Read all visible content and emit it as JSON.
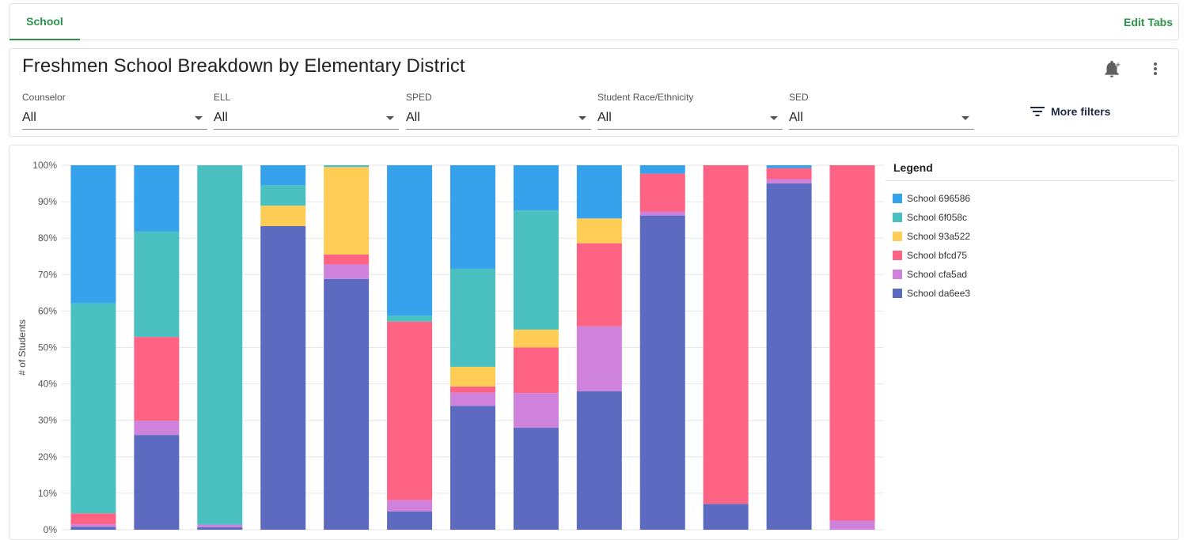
{
  "tabs": {
    "active": "School",
    "edit": "Edit Tabs"
  },
  "header": {
    "title": "Freshmen School Breakdown by Elementary District",
    "more_filters": "More filters"
  },
  "filters": [
    {
      "label": "Counselor",
      "value": "All"
    },
    {
      "label": "ELL",
      "value": "All"
    },
    {
      "label": "SPED",
      "value": "All"
    },
    {
      "label": "Student Race/Ethnicity",
      "value": "All"
    },
    {
      "label": "SED",
      "value": "All"
    }
  ],
  "legend": {
    "title": "Legend"
  },
  "icons": {
    "bell": "bell-plus-icon",
    "menu": "more-vert-icon",
    "filter": "filter-list-icon"
  },
  "colors": {
    "accent": "#2b9348"
  },
  "chart_data": {
    "type": "bar",
    "stacked": true,
    "normalized": true,
    "ylabel": "# of Students",
    "ylim": [
      0,
      100
    ],
    "yticks": [
      "0%",
      "10%",
      "20%",
      "30%",
      "40%",
      "50%",
      "60%",
      "70%",
      "80%",
      "90%",
      "100%"
    ],
    "grid": true,
    "legend_position": "right",
    "categories": [
      "",
      "",
      "",
      "",
      "",
      "",
      "",
      "",
      "",
      "",
      "",
      "",
      ""
    ],
    "series": [
      {
        "name": "School da6ee3",
        "color": "#5c6bc0",
        "values": [
          0.8,
          26.0,
          0.7,
          83.3,
          68.8,
          5.0,
          34.0,
          28.0,
          38.0,
          86.2,
          7.1,
          95.0,
          0
        ]
      },
      {
        "name": "School cfa5ad",
        "color": "#ce82dc",
        "values": [
          0.7,
          3.9,
          0.7,
          0,
          4.0,
          3.1,
          3.6,
          9.5,
          17.8,
          1.1,
          0,
          1.2,
          2.5
        ]
      },
      {
        "name": "School bfcd75",
        "color": "#ff6384",
        "values": [
          3.0,
          23.0,
          0,
          0,
          2.7,
          49.0,
          1.7,
          12.5,
          22.8,
          10.4,
          92.9,
          3.0,
          97.5
        ]
      },
      {
        "name": "School 93a522",
        "color": "#ffcd56",
        "values": [
          0,
          0,
          0,
          5.6,
          24.0,
          0,
          5.4,
          4.9,
          6.8,
          0,
          0,
          0,
          0
        ]
      },
      {
        "name": "School 6f058c",
        "color": "#4bc0c0",
        "values": [
          57.6,
          28.9,
          98.6,
          5.6,
          0.5,
          1.6,
          26.9,
          32.7,
          0,
          0,
          0,
          0,
          0
        ]
      },
      {
        "name": "School 696586",
        "color": "#36a2eb",
        "values": [
          37.9,
          18.2,
          0,
          5.5,
          0,
          41.3,
          28.4,
          12.4,
          14.6,
          2.3,
          0,
          0.8,
          0
        ]
      }
    ]
  }
}
